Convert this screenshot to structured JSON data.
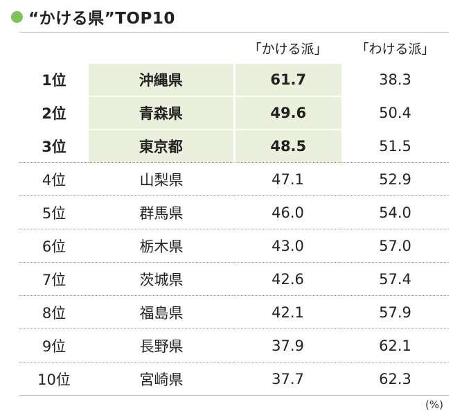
{
  "title": "“かける県”TOP10",
  "accent_color": "#7ec35a",
  "highlight_color": "#ebf0dc",
  "unit": "(%)",
  "chart_data": {
    "type": "table",
    "columns": [
      "",
      "",
      "「かける派」",
      "「わける派」"
    ],
    "rows": [
      {
        "rank": "1位",
        "pref": "沖縄県",
        "kakeru": "61.7",
        "wakeru": "38.3"
      },
      {
        "rank": "2位",
        "pref": "青森県",
        "kakeru": "49.6",
        "wakeru": "50.4"
      },
      {
        "rank": "3位",
        "pref": "東京都",
        "kakeru": "48.5",
        "wakeru": "51.5"
      },
      {
        "rank": "4位",
        "pref": "山梨県",
        "kakeru": "47.1",
        "wakeru": "52.9"
      },
      {
        "rank": "5位",
        "pref": "群馬県",
        "kakeru": "46.0",
        "wakeru": "54.0"
      },
      {
        "rank": "6位",
        "pref": "栃木県",
        "kakeru": "43.0",
        "wakeru": "57.0"
      },
      {
        "rank": "7位",
        "pref": "茨城県",
        "kakeru": "42.6",
        "wakeru": "57.4"
      },
      {
        "rank": "8位",
        "pref": "福島県",
        "kakeru": "42.1",
        "wakeru": "57.9"
      },
      {
        "rank": "9位",
        "pref": "長野県",
        "kakeru": "37.9",
        "wakeru": "62.1"
      },
      {
        "rank": "10位",
        "pref": "宮崎県",
        "kakeru": "37.7",
        "wakeru": "62.3"
      }
    ]
  }
}
